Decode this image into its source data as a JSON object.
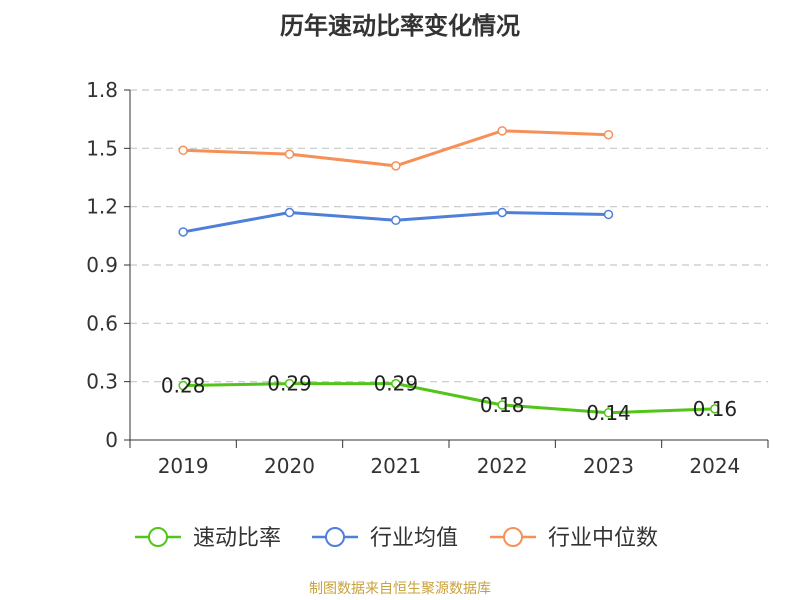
{
  "chart_data": {
    "type": "line",
    "title": "历年速动比率变化情况",
    "categories": [
      "2019",
      "2020",
      "2021",
      "2022",
      "2023",
      "2024"
    ],
    "series": [
      {
        "name": "速动比率",
        "color": "#52c41a",
        "values": [
          0.28,
          0.29,
          0.29,
          0.18,
          0.14,
          0.16
        ],
        "data_labels": [
          "0.28",
          "0.29",
          "0.29",
          "0.18",
          "0.14",
          "0.16"
        ]
      },
      {
        "name": "行业均值",
        "color": "#4e7fd9",
        "values": [
          1.07,
          1.17,
          1.13,
          1.17,
          1.16,
          null
        ]
      },
      {
        "name": "行业中位数",
        "color": "#f79057",
        "values": [
          1.49,
          1.47,
          1.41,
          1.59,
          1.57,
          null
        ]
      }
    ],
    "ylim": [
      0,
      1.8
    ],
    "yticks": [
      "0",
      "0.3",
      "0.6",
      "0.9",
      "1.2",
      "1.5",
      "1.8"
    ],
    "xlabel": "",
    "ylabel": "",
    "grid": true,
    "legend_position": "bottom"
  },
  "footer": {
    "source": "制图数据来自恒生聚源数据库"
  }
}
